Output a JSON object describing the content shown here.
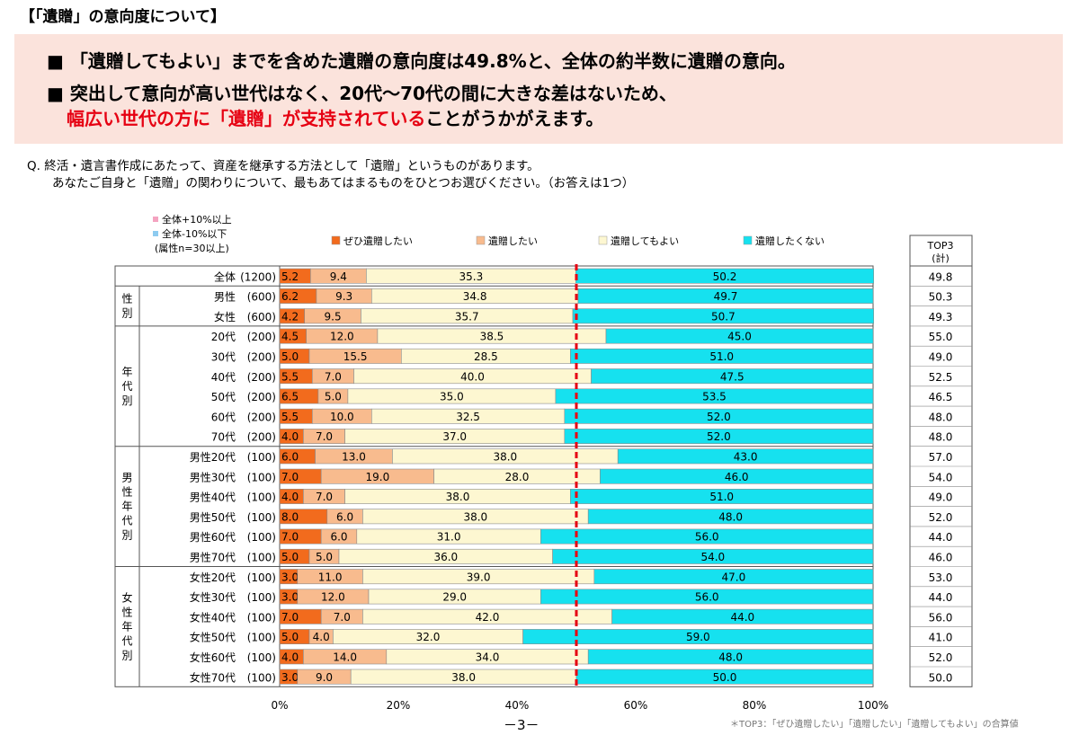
{
  "title": "【「遺贈」の意向度について】",
  "summary": {
    "line1": "■ 「遺贈してもよい」までを含めた遺贈の意向度は49.8%と、全体の約半数に遺贈の意向。",
    "line2": "■ 突出して意向が高い世代はなく、20代～70代の間に大きな差はないため、",
    "line3_red": "幅広い世代の方に「遺贈」が支持されている",
    "line3_rest": "ことがうかがえます。"
  },
  "question": {
    "line1": "Q.  終活・遺言書作成にあたって、資産を継承する方法として「遺贈」というものがあります。",
    "line2": "あなたご自身と「遺贈」の関わりについて、最もあてはまるものをひとつお選びください。（お答えは1つ）"
  },
  "notes": {
    "plus": "全体+10%以上",
    "minus": "全体-10%以下",
    "base": "(属性n=30以上)"
  },
  "top3_header": [
    "TOP3",
    "(計)"
  ],
  "page_number": "－3－",
  "footnote": "＊TOP3：「ぜひ遺贈したい」「遺贈したい」「遺贈してもよい」の合算値",
  "chart_data": {
    "type": "bar",
    "orientation": "horizontal",
    "stacked": "100%",
    "xlim": [
      0,
      100
    ],
    "xticks": [
      "0%",
      "20%",
      "40%",
      "60%",
      "80%",
      "100%"
    ],
    "reference_line": 50,
    "legend": [
      {
        "name": "ぜひ遺贈したい",
        "color": "#f26b1d"
      },
      {
        "name": "遺贈したい",
        "color": "#f8bb8e"
      },
      {
        "name": "遺贈してもよい",
        "color": "#fdf7d1"
      },
      {
        "name": "遺贈したくない",
        "color": "#16e1ef"
      }
    ],
    "groups": [
      {
        "label": "",
        "rows": 1
      },
      {
        "label": "性別",
        "rows": 2
      },
      {
        "label": "年代別",
        "rows": 6
      },
      {
        "label": "男性年代別",
        "rows": 6
      },
      {
        "label": "女性年代別",
        "rows": 6
      }
    ],
    "rows": [
      {
        "label": "全体",
        "n": "(1200)",
        "values": [
          5.2,
          9.4,
          35.3,
          50.2
        ],
        "top3": "49.8"
      },
      {
        "label": "男性",
        "n": "(600)",
        "values": [
          6.2,
          9.3,
          34.8,
          49.7
        ],
        "top3": "50.3"
      },
      {
        "label": "女性",
        "n": "(600)",
        "values": [
          4.2,
          9.5,
          35.7,
          50.7
        ],
        "top3": "49.3"
      },
      {
        "label": "20代",
        "n": "(200)",
        "values": [
          4.5,
          12.0,
          38.5,
          45.0
        ],
        "top3": "55.0"
      },
      {
        "label": "30代",
        "n": "(200)",
        "values": [
          5.0,
          15.5,
          28.5,
          51.0
        ],
        "top3": "49.0"
      },
      {
        "label": "40代",
        "n": "(200)",
        "values": [
          5.5,
          7.0,
          40.0,
          47.5
        ],
        "top3": "52.5"
      },
      {
        "label": "50代",
        "n": "(200)",
        "values": [
          6.5,
          5.0,
          35.0,
          53.5
        ],
        "top3": "46.5"
      },
      {
        "label": "60代",
        "n": "(200)",
        "values": [
          5.5,
          10.0,
          32.5,
          52.0
        ],
        "top3": "48.0"
      },
      {
        "label": "70代",
        "n": "(200)",
        "values": [
          4.0,
          7.0,
          37.0,
          52.0
        ],
        "top3": "48.0"
      },
      {
        "label": "男性20代",
        "n": "(100)",
        "values": [
          6.0,
          13.0,
          38.0,
          43.0
        ],
        "top3": "57.0"
      },
      {
        "label": "男性30代",
        "n": "(100)",
        "values": [
          7.0,
          19.0,
          28.0,
          46.0
        ],
        "top3": "54.0"
      },
      {
        "label": "男性40代",
        "n": "(100)",
        "values": [
          4.0,
          7.0,
          38.0,
          51.0
        ],
        "top3": "49.0"
      },
      {
        "label": "男性50代",
        "n": "(100)",
        "values": [
          8.0,
          6.0,
          38.0,
          48.0
        ],
        "top3": "52.0"
      },
      {
        "label": "男性60代",
        "n": "(100)",
        "values": [
          7.0,
          6.0,
          31.0,
          56.0
        ],
        "top3": "44.0"
      },
      {
        "label": "男性70代",
        "n": "(100)",
        "values": [
          5.0,
          5.0,
          36.0,
          54.0
        ],
        "top3": "46.0"
      },
      {
        "label": "女性20代",
        "n": "(100)",
        "values": [
          3.0,
          11.0,
          39.0,
          47.0
        ],
        "top3": "53.0"
      },
      {
        "label": "女性30代",
        "n": "(100)",
        "values": [
          3.0,
          12.0,
          29.0,
          56.0
        ],
        "top3": "44.0"
      },
      {
        "label": "女性40代",
        "n": "(100)",
        "values": [
          7.0,
          7.0,
          42.0,
          44.0
        ],
        "top3": "56.0"
      },
      {
        "label": "女性50代",
        "n": "(100)",
        "values": [
          5.0,
          4.0,
          32.0,
          59.0
        ],
        "top3": "41.0"
      },
      {
        "label": "女性60代",
        "n": "(100)",
        "values": [
          4.0,
          14.0,
          34.0,
          48.0
        ],
        "top3": "52.0"
      },
      {
        "label": "女性70代",
        "n": "(100)",
        "values": [
          3.0,
          9.0,
          38.0,
          50.0
        ],
        "top3": "50.0"
      }
    ]
  }
}
